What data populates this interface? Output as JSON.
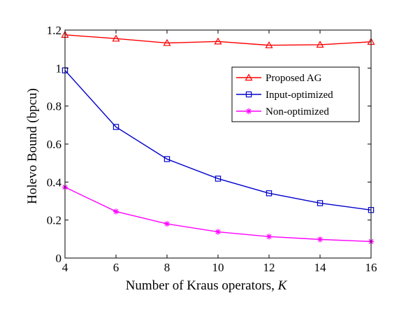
{
  "chart_data": {
    "type": "line",
    "x": [
      4,
      6,
      8,
      10,
      12,
      14,
      16
    ],
    "xlabel": "Number of Kraus operators, ",
    "xlabel_var": "K",
    "ylabel": "Holevo Bound (bpcu)",
    "xlim": [
      4,
      16
    ],
    "ylim": [
      0,
      1.2
    ],
    "xticks": [
      4,
      6,
      8,
      10,
      12,
      14,
      16
    ],
    "yticks": [
      0,
      0.2,
      0.4,
      0.6,
      0.8,
      1,
      1.2
    ],
    "xtick_labels": [
      "4",
      "6",
      "8",
      "10",
      "12",
      "14",
      "16"
    ],
    "ytick_labels": [
      "0",
      "0.2",
      "0.4",
      "0.6",
      "0.8",
      "1",
      "1.2"
    ],
    "grid": false,
    "legend_position": "top-right",
    "series": [
      {
        "name": "Proposed AG",
        "color": "#ff0000",
        "marker": "triangle",
        "values": [
          1.175,
          1.155,
          1.132,
          1.14,
          1.12,
          1.123,
          1.138
        ]
      },
      {
        "name": "Input-optimized",
        "color": "#0000cc",
        "marker": "square",
        "values": [
          0.988,
          0.69,
          0.521,
          0.418,
          0.341,
          0.289,
          0.253
        ]
      },
      {
        "name": "Non-optimized",
        "color": "#ff00ff",
        "marker": "asterisk",
        "values": [
          0.373,
          0.245,
          0.18,
          0.138,
          0.113,
          0.098,
          0.087
        ]
      }
    ]
  }
}
